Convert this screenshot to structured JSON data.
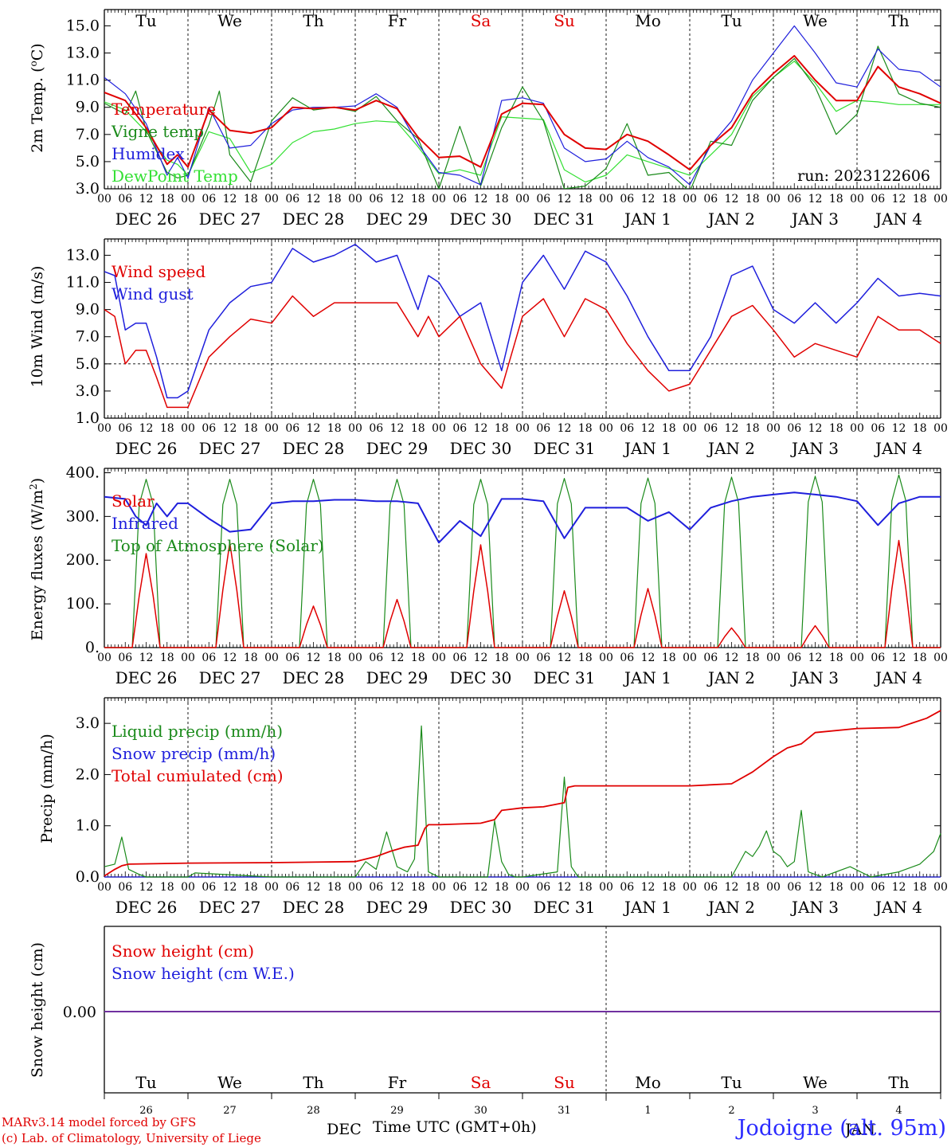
{
  "run_label": "run: 2023122606",
  "weekday_top": [
    "Tu",
    "We",
    "Th",
    "Fr",
    "Sa",
    "Su",
    "Mo",
    "Tu",
    "We",
    "Th"
  ],
  "weekday_colors": [
    "#000",
    "#000",
    "#000",
    "#000",
    "#e00000",
    "#e00000",
    "#000",
    "#000",
    "#000",
    "#000"
  ],
  "date_labels": [
    "DEC 26",
    "DEC 27",
    "DEC 28",
    "DEC 29",
    "DEC 30",
    "DEC 31",
    "JAN  1",
    "JAN  2",
    "JAN  3",
    "JAN  4"
  ],
  "hour_ticks": [
    "00",
    "06",
    "12",
    "18"
  ],
  "bottom_day_numbers": [
    "26",
    "27",
    "28",
    "29",
    "30",
    "31",
    "1",
    "2",
    "3",
    "4"
  ],
  "bottom_month_left": "DEC",
  "bottom_month_right": "JAN",
  "x_axis_title": "Time UTC (GMT+0h)",
  "credit_line1": "MARv3.14 model forced by GFS",
  "credit_line2": "(c) Lab. of Climatology, University of Liege",
  "station": "Jodoigne (alt. 95m)",
  "colors": {
    "red": "#e00000",
    "green": "#1a8a1a",
    "blue": "#1f1fdc",
    "lightgreen": "#33e033",
    "purple": "#7030a0"
  },
  "chart_data": [
    {
      "type": "line",
      "ylabel": "2m Temp. (oC)",
      "ylim": [
        3.0,
        16.2
      ],
      "yticks": [
        3.0,
        5.0,
        7.0,
        9.0,
        11.0,
        13.0,
        15.0
      ],
      "x_unit": "hours since DEC 26 00 UTC",
      "series": [
        {
          "name": "Temperature",
          "color": "red",
          "x": [
            0,
            6,
            12,
            18,
            21,
            24,
            30,
            36,
            42,
            48,
            54,
            60,
            66,
            72,
            78,
            84,
            90,
            96,
            102,
            108,
            114,
            120,
            126,
            132,
            138,
            144,
            150,
            156,
            162,
            168,
            174,
            180,
            186,
            192,
            198,
            204,
            210,
            216,
            222,
            228,
            234,
            240
          ],
          "y": [
            10.1,
            9.5,
            7.5,
            4.8,
            5.5,
            4.6,
            8.8,
            7.3,
            7.1,
            7.5,
            9.0,
            8.9,
            9.0,
            8.8,
            9.5,
            8.9,
            6.8,
            5.3,
            5.4,
            4.6,
            8.5,
            9.3,
            9.2,
            7.0,
            6.0,
            5.9,
            7.0,
            6.5,
            5.5,
            4.4,
            6.2,
            7.5,
            10.0,
            11.5,
            12.8,
            11.0,
            9.5,
            9.5,
            12.0,
            10.5,
            10.0,
            9.3
          ]
        },
        {
          "name": "Vigne temp",
          "color": "green",
          "x": [
            0,
            6,
            9,
            12,
            18,
            21,
            24,
            30,
            33,
            36,
            42,
            48,
            54,
            60,
            66,
            72,
            78,
            84,
            90,
            96,
            102,
            108,
            114,
            120,
            126,
            132,
            138,
            144,
            150,
            156,
            162,
            168,
            174,
            180,
            186,
            192,
            198,
            204,
            210,
            216,
            222,
            228,
            234,
            240
          ],
          "y": [
            9.3,
            8.5,
            10.2,
            7.3,
            4.2,
            3.8,
            4.0,
            7.7,
            10.2,
            5.5,
            3.5,
            8.0,
            9.7,
            8.8,
            9.0,
            8.7,
            9.8,
            8.0,
            6.7,
            3.0,
            7.6,
            3.2,
            7.5,
            10.5,
            8.0,
            3.0,
            3.2,
            4.5,
            7.8,
            4.0,
            4.2,
            2.8,
            6.5,
            6.2,
            9.5,
            11.2,
            12.6,
            10.5,
            7.0,
            8.5,
            13.5,
            10.0,
            9.3,
            9.0
          ]
        },
        {
          "name": "Humidex",
          "color": "blue",
          "x": [
            0,
            6,
            12,
            18,
            21,
            24,
            30,
            36,
            42,
            48,
            54,
            60,
            66,
            72,
            78,
            84,
            90,
            96,
            102,
            108,
            114,
            120,
            126,
            132,
            138,
            144,
            150,
            156,
            162,
            168,
            174,
            180,
            186,
            192,
            198,
            204,
            210,
            216,
            222,
            228,
            234,
            240
          ],
          "y": [
            11.2,
            10.0,
            7.8,
            4.0,
            5.3,
            3.8,
            9.0,
            6.0,
            6.2,
            7.8,
            8.8,
            9.0,
            9.0,
            9.1,
            10.0,
            9.0,
            6.3,
            4.2,
            4.0,
            3.3,
            9.5,
            9.7,
            9.3,
            6.0,
            5.0,
            5.2,
            6.5,
            5.3,
            4.6,
            3.3,
            6.2,
            8.0,
            11.0,
            13.0,
            15.0,
            13.0,
            10.8,
            10.5,
            13.3,
            11.8,
            11.6,
            10.5
          ]
        },
        {
          "name": "DewPoint Temp",
          "color": "lightgreen",
          "x": [
            0,
            6,
            12,
            18,
            21,
            24,
            30,
            36,
            42,
            48,
            54,
            60,
            66,
            72,
            78,
            84,
            90,
            96,
            102,
            108,
            114,
            120,
            126,
            132,
            138,
            144,
            150,
            156,
            162,
            168,
            174,
            180,
            186,
            192,
            198,
            204,
            210,
            216,
            222,
            228,
            234,
            240
          ],
          "y": [
            9.4,
            8.8,
            7.2,
            5.1,
            4.8,
            4.0,
            7.2,
            6.7,
            4.2,
            4.8,
            6.4,
            7.2,
            7.4,
            7.8,
            8.0,
            7.9,
            6.1,
            4.1,
            4.4,
            4.0,
            8.3,
            8.2,
            8.1,
            4.4,
            3.5,
            4.0,
            5.5,
            5.0,
            4.5,
            4.0,
            5.5,
            7.0,
            9.8,
            11.2,
            12.4,
            10.8,
            8.7,
            9.5,
            9.4,
            9.2,
            9.2,
            9.2
          ]
        }
      ]
    },
    {
      "type": "line",
      "ylabel": "10m Wind (m/s)",
      "ylim": [
        1.0,
        14.2
      ],
      "yticks": [
        1.0,
        3.0,
        5.0,
        7.0,
        9.0,
        11.0,
        13.0
      ],
      "reference_line": 5.0,
      "series": [
        {
          "name": "Wind speed",
          "color": "red",
          "x": [
            0,
            3,
            6,
            9,
            12,
            15,
            18,
            21,
            24,
            30,
            36,
            42,
            48,
            54,
            60,
            66,
            72,
            78,
            84,
            90,
            93,
            96,
            102,
            108,
            114,
            120,
            126,
            132,
            138,
            144,
            150,
            156,
            162,
            168,
            174,
            180,
            186,
            192,
            198,
            204,
            210,
            216,
            222,
            228,
            234,
            240
          ],
          "y": [
            9.0,
            8.5,
            5.0,
            6.0,
            6.0,
            4.0,
            1.8,
            1.8,
            1.8,
            5.5,
            7.0,
            8.3,
            8.0,
            10.0,
            8.5,
            9.5,
            9.5,
            9.5,
            9.5,
            7.0,
            8.5,
            7.0,
            8.5,
            5.0,
            3.2,
            8.5,
            9.8,
            7.0,
            9.8,
            9.0,
            6.5,
            4.5,
            3.0,
            3.5,
            6.0,
            8.5,
            9.3,
            7.5,
            5.5,
            6.5,
            6.0,
            5.5,
            8.5,
            7.5,
            7.5,
            6.5
          ]
        },
        {
          "name": "Wind gust",
          "color": "blue",
          "x": [
            0,
            3,
            6,
            9,
            12,
            15,
            18,
            21,
            24,
            30,
            36,
            42,
            48,
            54,
            60,
            66,
            72,
            78,
            84,
            90,
            93,
            96,
            102,
            108,
            114,
            120,
            126,
            132,
            138,
            144,
            150,
            156,
            162,
            168,
            174,
            180,
            186,
            192,
            198,
            204,
            210,
            216,
            222,
            228,
            234,
            240
          ],
          "y": [
            11.8,
            11.5,
            7.5,
            8.0,
            8.0,
            5.5,
            2.5,
            2.5,
            3.0,
            7.5,
            9.5,
            10.7,
            11.0,
            13.5,
            12.5,
            13.0,
            13.8,
            12.5,
            13.0,
            9.0,
            11.5,
            11.0,
            8.5,
            9.5,
            4.5,
            11.0,
            13.0,
            10.5,
            13.3,
            12.5,
            10.0,
            7.0,
            4.5,
            4.5,
            7.0,
            11.5,
            12.2,
            9.0,
            8.0,
            9.5,
            8.0,
            9.5,
            11.3,
            10.0,
            10.2,
            10.0
          ]
        }
      ]
    },
    {
      "type": "line",
      "ylabel": "Energy fluxes (W/m2)",
      "ylim": [
        0,
        410
      ],
      "yticks": [
        0,
        100,
        200,
        300,
        400
      ],
      "ytick_labels": [
        "0.",
        "100.",
        "200.",
        "300.",
        "400."
      ],
      "series": [
        {
          "name": "Solar",
          "color": "red",
          "daily_peak": [
            215,
            240,
            95,
            110,
            235,
            130,
            135,
            45,
            50,
            245
          ]
        },
        {
          "name": "Infrared",
          "color": "blue",
          "x": [
            0,
            6,
            9,
            12,
            15,
            18,
            21,
            24,
            30,
            36,
            42,
            48,
            54,
            60,
            66,
            72,
            78,
            84,
            90,
            96,
            102,
            108,
            114,
            120,
            126,
            132,
            138,
            144,
            150,
            156,
            162,
            168,
            174,
            180,
            186,
            192,
            198,
            204,
            210,
            216,
            222,
            228,
            234,
            240
          ],
          "y": [
            345,
            340,
            300,
            280,
            330,
            300,
            330,
            330,
            295,
            265,
            270,
            330,
            335,
            335,
            338,
            338,
            335,
            335,
            330,
            240,
            290,
            255,
            340,
            340,
            335,
            250,
            320,
            320,
            320,
            290,
            310,
            270,
            320,
            335,
            345,
            350,
            355,
            350,
            345,
            335,
            280,
            330,
            345,
            345
          ]
        },
        {
          "name": "Top of Atmosphere (Solar)",
          "color": "green",
          "daily_peak": [
            385,
            385,
            385,
            385,
            385,
            387,
            388,
            390,
            392,
            395
          ]
        }
      ]
    },
    {
      "type": "line",
      "ylabel": "Precip (mm/h)",
      "ylim": [
        0,
        3.5
      ],
      "yticks": [
        0.0,
        1.0,
        2.0,
        3.0
      ],
      "series": [
        {
          "name": "Liquid precip (mm/h)",
          "color": "green",
          "x": [
            0,
            3,
            5,
            7,
            10,
            12,
            24,
            26,
            48,
            72,
            75,
            78,
            81,
            84,
            87,
            89,
            91,
            93,
            96,
            110,
            112,
            114,
            116,
            118,
            120,
            130,
            132,
            134,
            136,
            138,
            180,
            184,
            186,
            188,
            190,
            192,
            194,
            196,
            198,
            200,
            202,
            204,
            206,
            214,
            220,
            228,
            234,
            238,
            240
          ],
          "y": [
            0.2,
            0.25,
            0.78,
            0.15,
            0.05,
            0.0,
            0.0,
            0.08,
            0.0,
            0.0,
            0.3,
            0.15,
            0.88,
            0.2,
            0.1,
            0.35,
            2.95,
            0.1,
            0.0,
            0.0,
            1.1,
            0.3,
            0.05,
            0.0,
            0.0,
            0.1,
            1.95,
            0.2,
            0.0,
            0.0,
            0.0,
            0.5,
            0.4,
            0.6,
            0.9,
            0.5,
            0.4,
            0.2,
            0.3,
            1.3,
            0.1,
            0.05,
            0.0,
            0.2,
            0.0,
            0.1,
            0.25,
            0.5,
            0.85
          ]
        },
        {
          "name": "Snow precip (mm/h)",
          "color": "blue",
          "x": [
            0,
            240
          ],
          "y": [
            0,
            0
          ]
        },
        {
          "name": "Total cumulated (cm)",
          "color": "red",
          "x": [
            0,
            3,
            5,
            7,
            24,
            48,
            72,
            78,
            82,
            86,
            88,
            90,
            92,
            93,
            96,
            108,
            112,
            114,
            120,
            126,
            132,
            133,
            135,
            150,
            168,
            180,
            186,
            192,
            196,
            200,
            204,
            216,
            228,
            236,
            240
          ],
          "y": [
            0.02,
            0.15,
            0.22,
            0.25,
            0.27,
            0.28,
            0.3,
            0.4,
            0.5,
            0.58,
            0.6,
            0.62,
            0.95,
            1.02,
            1.02,
            1.05,
            1.12,
            1.3,
            1.35,
            1.37,
            1.45,
            1.75,
            1.78,
            1.78,
            1.78,
            1.82,
            2.05,
            2.35,
            2.52,
            2.6,
            2.82,
            2.9,
            2.92,
            3.1,
            3.25
          ]
        }
      ]
    },
    {
      "type": "line",
      "ylabel": "Snow height (cm)",
      "ytick_labels": [
        "0.00"
      ],
      "series": [
        {
          "name": "Snow height (cm)",
          "color": "red",
          "x": [
            0,
            240
          ],
          "y": [
            0,
            0
          ]
        },
        {
          "name": "Snow height (cm W.E.)",
          "color": "blue",
          "x": [
            0,
            240
          ],
          "y": [
            0,
            0
          ]
        }
      ]
    }
  ]
}
